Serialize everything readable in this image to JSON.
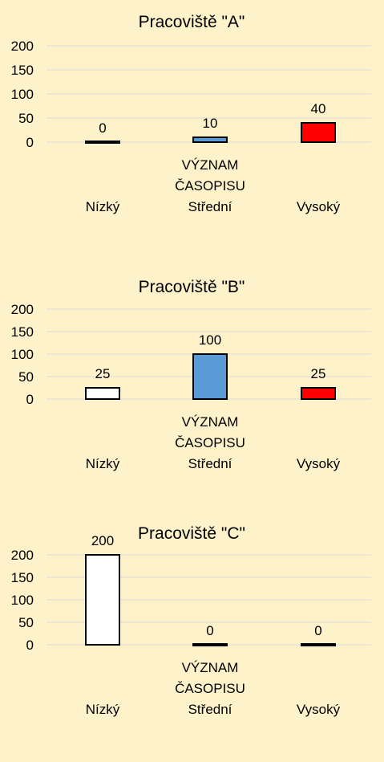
{
  "colors": {
    "background": "#fef2cb",
    "gridline": "#d9d9d9",
    "low": "#ffffff",
    "medium": "#5b9bd5",
    "high": "#ff0000",
    "bar_border": "#000000"
  },
  "chart_data": [
    {
      "type": "bar",
      "title": "Pracoviště \"A\"",
      "xlabel": "VÝZNAM ČASOPISU",
      "xlabel_lines": [
        "VÝZNAM",
        "ČASOPISU"
      ],
      "ylabel": "",
      "categories": [
        "Nízký",
        "Střední",
        "Vysoký"
      ],
      "values": [
        0,
        10,
        40
      ],
      "data_labels": [
        "0",
        "10",
        "40"
      ],
      "ylim": [
        0,
        200
      ],
      "yticks": [
        0,
        50,
        100,
        150,
        200
      ],
      "grid": true,
      "legend": "none"
    },
    {
      "type": "bar",
      "title": "Pracoviště \"B\"",
      "xlabel": "VÝZNAM ČASOPISU",
      "xlabel_lines": [
        "VÝZNAM",
        "ČASOPISU"
      ],
      "ylabel": "",
      "categories": [
        "Nízký",
        "Střední",
        "Vysoký"
      ],
      "values": [
        25,
        100,
        25
      ],
      "data_labels": [
        "25",
        "100",
        "25"
      ],
      "ylim": [
        0,
        200
      ],
      "yticks": [
        0,
        50,
        100,
        150,
        200
      ],
      "grid": true,
      "legend": "none"
    },
    {
      "type": "bar",
      "title": "Pracoviště \"C\"",
      "xlabel": "VÝZNAM ČASOPISU",
      "xlabel_lines": [
        "VÝZNAM",
        "ČASOPISU"
      ],
      "ylabel": "",
      "categories": [
        "Nízký",
        "Střední",
        "Vysoký"
      ],
      "values": [
        200,
        0,
        0
      ],
      "data_labels": [
        "200",
        "0",
        "0"
      ],
      "ylim": [
        0,
        200
      ],
      "yticks": [
        0,
        50,
        100,
        150,
        200
      ],
      "grid": true,
      "legend": "none"
    }
  ]
}
